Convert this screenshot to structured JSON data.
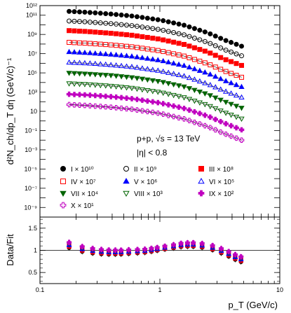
{
  "chart_data": [
    {
      "type": "scatter",
      "ylabel": "d²N_ch/dp_T dη (GeV/c)⁻¹",
      "xlabel": "",
      "xlim": [
        0.1,
        10
      ],
      "ylim": [
        1e-10,
        1000000000000.0
      ],
      "xscale": "log",
      "yscale": "log",
      "annotations": {
        "system_line": "p+p, √s = 13 TeV",
        "eta_line": "|η| < 0.8"
      },
      "x_ticks": [
        0.1,
        1,
        10
      ],
      "y_tick_labels": [
        {
          "v": 1000000000000.0,
          "label": "10¹²"
        },
        {
          "v": 100000000000.0,
          "label": "10¹¹"
        },
        {
          "v": 1000000000.0,
          "label": "10⁹"
        },
        {
          "v": 10000000.0,
          "label": "10⁷"
        },
        {
          "v": 100000.0,
          "label": "10⁵"
        },
        {
          "v": 1000.0,
          "label": "10³"
        },
        {
          "v": 10,
          "label": "10"
        },
        {
          "v": 0.1,
          "label": "10⁻¹"
        },
        {
          "v": 0.001,
          "label": "10⁻³"
        },
        {
          "v": 1e-05,
          "label": "10⁻⁵"
        },
        {
          "v": 1e-07,
          "label": "10⁻⁷"
        },
        {
          "v": 1e-09,
          "label": "10⁻⁹"
        }
      ],
      "legend_placement": "bottom-left inside",
      "series": [
        {
          "name": "I × 10¹⁰",
          "color": "#000000",
          "marker": "circle-filled",
          "x": [
            0.175,
            0.25,
            0.4,
            0.6,
            1.0,
            1.6,
            2.5,
            3.5,
            4.8
          ],
          "y": [
            250000000000.0,
            200000000000.0,
            130000000000.0,
            80000000000.0,
            32000000000.0,
            9000000000.0,
            1500000000.0,
            250000000.0,
            60000000.0
          ]
        },
        {
          "name": "II × 10⁹",
          "color": "#000000",
          "marker": "circle-open",
          "x": [
            0.175,
            0.25,
            0.4,
            0.6,
            1.0,
            1.6,
            2.5,
            3.5,
            4.8
          ],
          "y": [
            25000000000.0,
            20000000000.0,
            13000000000.0,
            8000000000.0,
            3200000000.0,
            900000000.0,
            150000000.0,
            25000000.0,
            6000000.0
          ]
        },
        {
          "name": "III × 10⁸",
          "color": "#ff0000",
          "marker": "square-filled",
          "x": [
            0.175,
            0.25,
            0.4,
            0.6,
            1.0,
            1.6,
            2.5,
            3.5,
            4.8
          ],
          "y": [
            2500000000.0,
            2000000000.0,
            1300000000.0,
            800000000.0,
            320000000.0,
            90000000.0,
            15000000.0,
            2500000.0,
            600000.0
          ]
        },
        {
          "name": "IV × 10⁷",
          "color": "#ff0000",
          "marker": "square-open",
          "x": [
            0.175,
            0.25,
            0.4,
            0.6,
            1.0,
            1.6,
            2.5,
            3.5,
            4.8
          ],
          "y": [
            150000000.0,
            120000000.0,
            80000000.0,
            50000000.0,
            20000000.0,
            5500000.0,
            900000.0,
            150000.0,
            35000.0
          ]
        },
        {
          "name": "V × 10⁶",
          "color": "#0000ff",
          "marker": "triangle-up-filled",
          "x": [
            0.175,
            0.25,
            0.4,
            0.6,
            1.0,
            1.6,
            2.5,
            3.5,
            4.8
          ],
          "y": [
            15000000.0,
            12000000.0,
            8000000.0,
            5000000.0,
            2000000.0,
            550000.0,
            90000.0,
            15000.0,
            3500.0
          ]
        },
        {
          "name": "VI × 10⁵",
          "color": "#0000ff",
          "marker": "triangle-up-open",
          "x": [
            0.175,
            0.25,
            0.4,
            0.6,
            1.0,
            1.6,
            2.5,
            3.5,
            4.8
          ],
          "y": [
            1200000.0,
            1000000.0,
            650000.0,
            400000.0,
            160000.0,
            45000.0,
            7000.0,
            1200.0,
            280.0
          ]
        },
        {
          "name": "VII × 10⁴",
          "color": "#006400",
          "marker": "triangle-down-filled",
          "x": [
            0.175,
            0.25,
            0.4,
            0.6,
            1.0,
            1.6,
            2.5,
            3.5,
            4.8
          ],
          "y": [
            100000.0,
            80000.0,
            55000.0,
            33000.0,
            13000.0,
            3700.0,
            600.0,
            100.0,
            23.0
          ]
        },
        {
          "name": "VIII × 10³",
          "color": "#006400",
          "marker": "triangle-down-open",
          "x": [
            0.175,
            0.25,
            0.4,
            0.6,
            1.0,
            1.6,
            2.5,
            3.5,
            4.8
          ],
          "y": [
            8000.0,
            6500.0,
            4300.0,
            2600.0,
            1000.0,
            280.0,
            45.0,
            7.5,
            1.7
          ]
        },
        {
          "name": "IX × 10²",
          "color": "#c000c0",
          "marker": "cross-filled",
          "x": [
            0.175,
            0.25,
            0.4,
            0.6,
            1.0,
            1.6,
            2.5,
            3.5,
            4.8
          ],
          "y": [
            600.0,
            500.0,
            330.0,
            200.0,
            75.0,
            20.0,
            3.2,
            0.55,
            0.12
          ]
        },
        {
          "name": "X × 10¹",
          "color": "#c000c0",
          "marker": "cross-open",
          "x": [
            0.175,
            0.25,
            0.4,
            0.6,
            1.0,
            1.6,
            2.5,
            3.5,
            4.8
          ],
          "y": [
            50.0,
            40.0,
            26.0,
            16.0,
            6.0,
            1.6,
            0.26,
            0.045,
            0.01
          ]
        }
      ]
    },
    {
      "type": "scatter",
      "ylabel": "Data/Fit",
      "xlabel": "p_T (GeV/c)",
      "xlim": [
        0.1,
        10
      ],
      "ylim": [
        0.25,
        1.75
      ],
      "xscale": "log",
      "reference_line": 1,
      "x_tick_labels": [
        {
          "v": 0.1,
          "label": "0.1"
        },
        {
          "v": 1,
          "label": "1"
        },
        {
          "v": 10,
          "label": "10"
        }
      ],
      "y_tick_labels": [
        {
          "v": 0.5,
          "label": "0.5"
        },
        {
          "v": 1,
          "label": "1"
        },
        {
          "v": 1.5,
          "label": "1.5"
        }
      ],
      "x": [
        0.175,
        0.225,
        0.275,
        0.325,
        0.375,
        0.425,
        0.475,
        0.55,
        0.65,
        0.75,
        0.85,
        0.95,
        1.1,
        1.3,
        1.5,
        1.7,
        1.9,
        2.25,
        2.75,
        3.25,
        3.75,
        4.25,
        4.75
      ],
      "ratio_center": [
        1.12,
        1.03,
        0.99,
        0.97,
        0.96,
        0.96,
        0.96,
        0.97,
        0.98,
        0.99,
        1.01,
        1.03,
        1.06,
        1.09,
        1.12,
        1.13,
        1.13,
        1.11,
        1.06,
        0.99,
        0.92,
        0.85,
        0.8
      ]
    }
  ]
}
